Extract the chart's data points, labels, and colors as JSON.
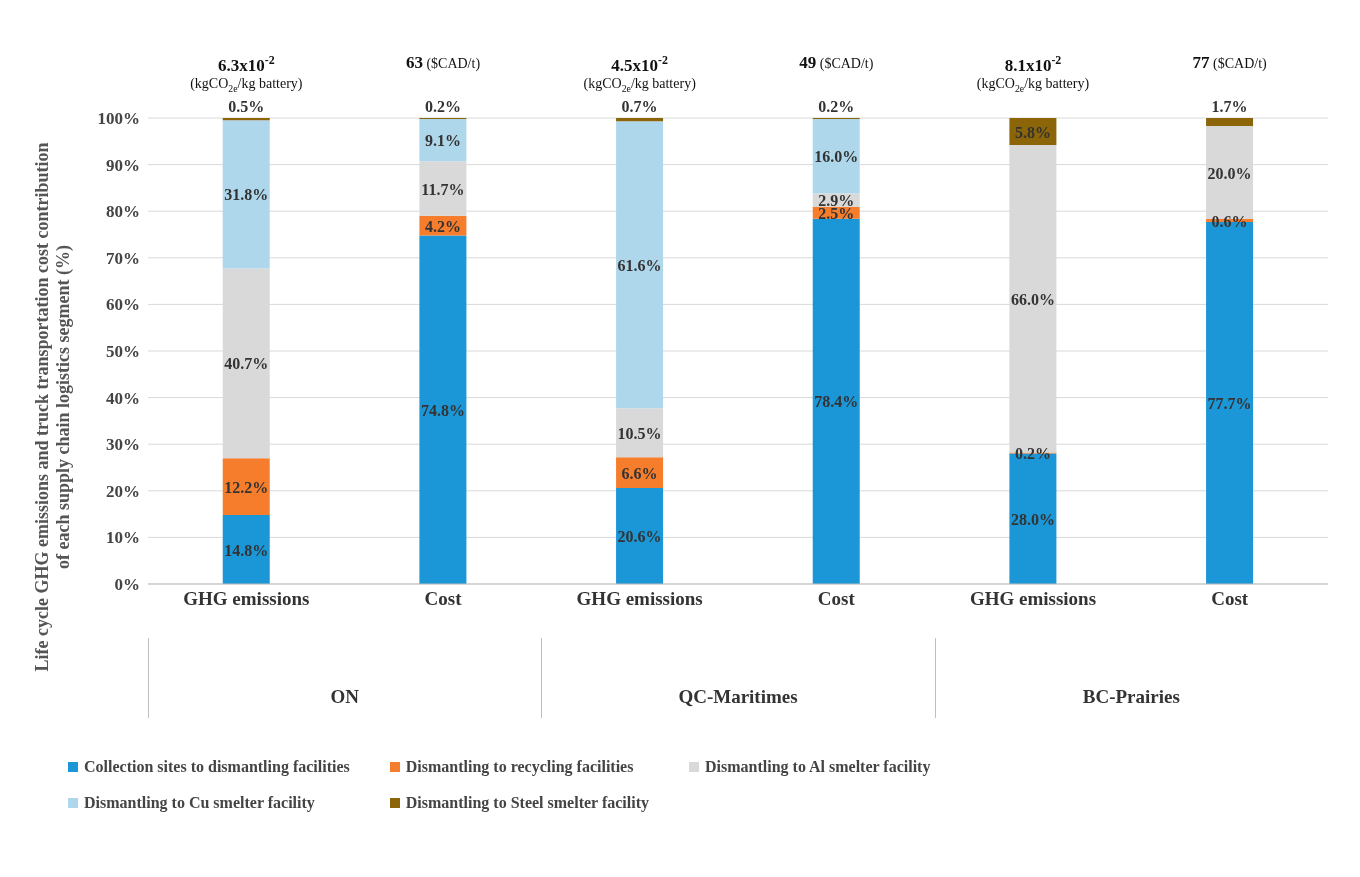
{
  "chart_data": {
    "type": "bar",
    "stacked": true,
    "ylabel": "Life cycle GHG emissions and truck transportation cost contribution of each supply chain logistics segment (%)",
    "categories": [
      "GHG emissions",
      "Cost",
      "GHG emissions",
      "Cost",
      "GHG emissions",
      "Cost"
    ],
    "series": [
      {
        "name": "Collection sites to dismantling facilities",
        "color": "#1b96d6",
        "values": [
          14.8,
          74.8,
          20.6,
          78.4,
          28.0,
          77.7
        ],
        "value_labels": [
          "14.8%",
          "74.8%",
          "20.6%",
          "78.4%",
          "28.0%",
          "77.7%"
        ]
      },
      {
        "name": "Dismantling to recycling facilities",
        "color": "#f57d2c",
        "values": [
          12.2,
          4.2,
          6.6,
          2.5,
          0.2,
          0.6
        ],
        "value_labels": [
          "12.2%",
          "4.2%",
          "6.6%",
          "2.5%",
          "0.2%",
          "0.6%"
        ]
      },
      {
        "name": "Dismantling to Al smelter facility",
        "color": "#d9d9d9",
        "values": [
          40.7,
          11.7,
          10.5,
          2.9,
          66.0,
          20.0
        ],
        "value_labels": [
          "40.7%",
          "11.7%",
          "10.5%",
          "2.9%",
          "66.0%",
          "20.0%"
        ]
      },
      {
        "name": "Dismantling to Cu smelter facility",
        "color": "#afd7ec",
        "values": [
          31.8,
          9.1,
          61.6,
          16.0,
          null,
          null
        ],
        "value_labels": [
          "31.8%",
          "9.1%",
          "61.6%",
          "16.0%",
          null,
          null
        ]
      },
      {
        "name": "Dismantling to Steel smelter facility",
        "color": "#8b6508",
        "values": [
          0.5,
          0.2,
          0.7,
          0.2,
          5.8,
          1.7
        ],
        "value_labels": [
          "0.5%",
          "0.2%",
          "0.7%",
          "0.2%",
          "5.8%",
          "1.7%"
        ]
      }
    ],
    "ylim": [
      0,
      100
    ],
    "yticks": [
      {
        "value": 0,
        "label": "0%"
      },
      {
        "value": 10,
        "label": "10%"
      },
      {
        "value": 20,
        "label": "20%"
      },
      {
        "value": 30,
        "label": "30%"
      },
      {
        "value": 40,
        "label": "40%"
      },
      {
        "value": 50,
        "label": "50%"
      },
      {
        "value": 60,
        "label": "60%"
      },
      {
        "value": 70,
        "label": "70%"
      },
      {
        "value": 80,
        "label": "80%"
      },
      {
        "value": 90,
        "label": "90%"
      },
      {
        "value": 100,
        "label": "100%"
      }
    ],
    "grid": "y",
    "legend": "bottom",
    "annotations": [
      "6.3x10$^{-2}$\n(kgCO$_{2e}$/kg battery)",
      "63 ($CAD/t)",
      "4.5x10$^{-2}$\n(kgCO$_{2e}$/kg battery)",
      "49 ($CAD/t)",
      "8.1x10$^{-2}$\n(kgCO$_{2e}$/kg battery)",
      "77 ($CAD/t)",
      "ON",
      "QC-Maritimes",
      "BC-Prairies"
    ]
  }
}
